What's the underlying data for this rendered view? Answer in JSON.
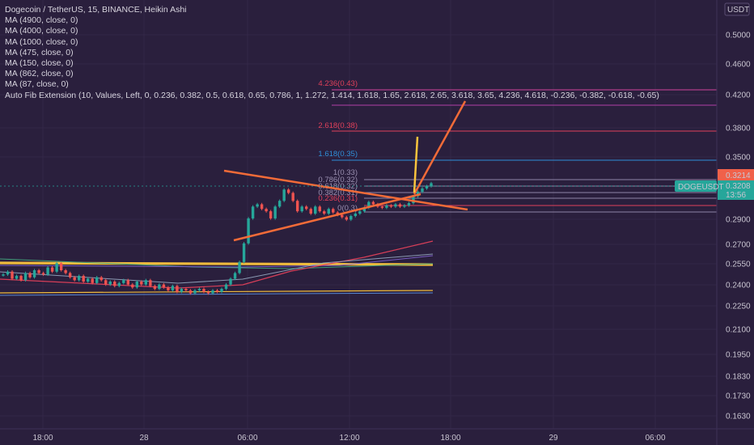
{
  "colors": {
    "background": "#2a1f3d",
    "text": "#c8c4d0",
    "candle_up": "#26a69a",
    "candle_down": "#ef5350",
    "trend_orange": "#f26b38",
    "yellow": "#fbc43d",
    "fib_red": "#e0405a",
    "fib_magenta": "#d0439a",
    "fib_blue": "#2f8fd8",
    "price_label_red": "#f0614a",
    "price_label_teal": "#26a69a"
  },
  "legend": {
    "title": "Dogecoin / TetherUS, 15, BINANCE, Heikin Ashi",
    "lines": [
      "MA (4900, close, 0)",
      "MA (4000, close, 0)",
      "MA (1000, close, 0)",
      "MA (475, close, 0)",
      "MA (150, close, 0)",
      "MA (862, close, 0)",
      "MA (87, close, 0)",
      "Auto Fib Extension (10, Values, Left, 0, 0.236, 0.382, 0.5, 0.618, 0.65, 0.786, 1, 1.272, 1.414, 1.618, 1.65, 2.618, 2.65, 3.618, 3.65, 4.236, 4.618, -0.236, -0.382, -0.618, -0.65)"
    ]
  },
  "price_axis": {
    "currency": "USDT",
    "ticks": [
      "0.5000",
      "0.4600",
      "0.4200",
      "0.3800",
      "0.3500",
      "0.3214",
      "0.3208",
      "0.2900",
      "0.2700",
      "0.2550",
      "0.2400",
      "0.2250",
      "0.2100",
      "0.1950",
      "0.1830",
      "0.1730",
      "0.1630"
    ]
  },
  "price_labels": {
    "high": "0.3214",
    "symbol": "DOGEUSDT",
    "last": "0.3208",
    "countdown": "13:56"
  },
  "time_axis": {
    "ticks": [
      "18:00",
      "28",
      "06:00",
      "12:00",
      "18:00",
      "29",
      "06:00"
    ]
  },
  "chart_data": {
    "type": "candlestick",
    "symbol": "DOGEUSDT",
    "exchange": "BINANCE",
    "interval": "15",
    "candle_style": "Heikin Ashi",
    "y_scale": "log",
    "ylim": [
      0.158,
      0.52
    ],
    "x_axis_labels": [
      "18:00",
      "28",
      "06:00",
      "12:00",
      "18:00",
      "29",
      "06:00"
    ],
    "closes": [
      0.247,
      0.249,
      0.244,
      0.246,
      0.243,
      0.248,
      0.245,
      0.25,
      0.248,
      0.247,
      0.252,
      0.249,
      0.255,
      0.25,
      0.248,
      0.245,
      0.243,
      0.246,
      0.242,
      0.244,
      0.241,
      0.245,
      0.243,
      0.24,
      0.242,
      0.239,
      0.241,
      0.243,
      0.24,
      0.238,
      0.242,
      0.24,
      0.243,
      0.239,
      0.237,
      0.24,
      0.238,
      0.236,
      0.239,
      0.235,
      0.237,
      0.236,
      0.234,
      0.236,
      0.237,
      0.235,
      0.234,
      0.236,
      0.235,
      0.237,
      0.24,
      0.244,
      0.248,
      0.256,
      0.27,
      0.29,
      0.3,
      0.302,
      0.298,
      0.296,
      0.29,
      0.3,
      0.305,
      0.315,
      0.312,
      0.305,
      0.296,
      0.3,
      0.298,
      0.294,
      0.3,
      0.296,
      0.294,
      0.298,
      0.295,
      0.293,
      0.291,
      0.289,
      0.292,
      0.294,
      0.296,
      0.299,
      0.304,
      0.302,
      0.3,
      0.299,
      0.301,
      0.3,
      0.302,
      0.3,
      0.301,
      0.303,
      0.309,
      0.313,
      0.316,
      0.318,
      0.3208
    ],
    "fib_levels": [
      {
        "label": "4.236(0.43)",
        "value": 0.43,
        "color": "#d0439a"
      },
      {
        "label": "2.618(0.38)",
        "value": 0.38,
        "color": "#e0405a"
      },
      {
        "label": "1.618(0.35)",
        "value": 0.35,
        "color": "#2f8fd8"
      },
      {
        "label": "1(0.33)",
        "value": 0.33,
        "color": "#9a8fb0"
      },
      {
        "label": "0.786(0.32)",
        "value": 0.322,
        "color": "#9a8fb0"
      },
      {
        "label": "0.618(0.32)",
        "value": 0.318,
        "color": "#9a8fb0"
      },
      {
        "label": "0.382(0.31)",
        "value": 0.313,
        "color": "#9a8fb0"
      },
      {
        "label": "0.236(0.31)",
        "value": 0.309,
        "color": "#e0405a"
      },
      {
        "label": "0(0.3)",
        "value": 0.302,
        "color": "#9a8fb0"
      }
    ],
    "moving_averages": [
      "MA (4900, close, 0)",
      "MA (4000, close, 0)",
      "MA (1000, close, 0)",
      "MA (475, close, 0)",
      "MA (150, close, 0)",
      "MA (862, close, 0)",
      "MA (87, close, 0)"
    ]
  }
}
